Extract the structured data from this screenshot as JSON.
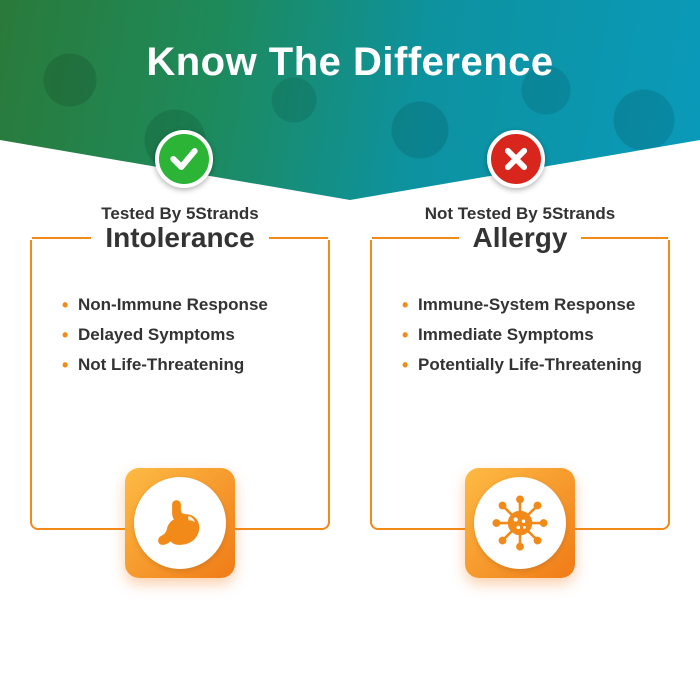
{
  "title": "Know The Difference",
  "colors": {
    "border": "#f28a1a",
    "bullet": "#f28a1a",
    "icon_bg": "linear-gradient(135deg,#fdbb44 0%,#f07b17 100%)",
    "icon_fill": "#f28a1a",
    "check_bg": "#2bb436",
    "cross_bg": "#d8261c",
    "text": "#333333"
  },
  "columns": [
    {
      "key": "intolerance",
      "badge": "check",
      "sublabel": "Tested By 5Strands",
      "heading": "Intolerance",
      "points": [
        "Non-Immune Response",
        "Delayed Symptoms",
        "Not Life-Threatening"
      ],
      "icon": "stomach"
    },
    {
      "key": "allergy",
      "badge": "cross",
      "sublabel": "Not Tested By 5Strands",
      "heading": "Allergy",
      "points": [
        "Immune-System Response",
        "Immediate Symptoms",
        "Potentially Life-Threatening"
      ],
      "icon": "virus"
    }
  ]
}
